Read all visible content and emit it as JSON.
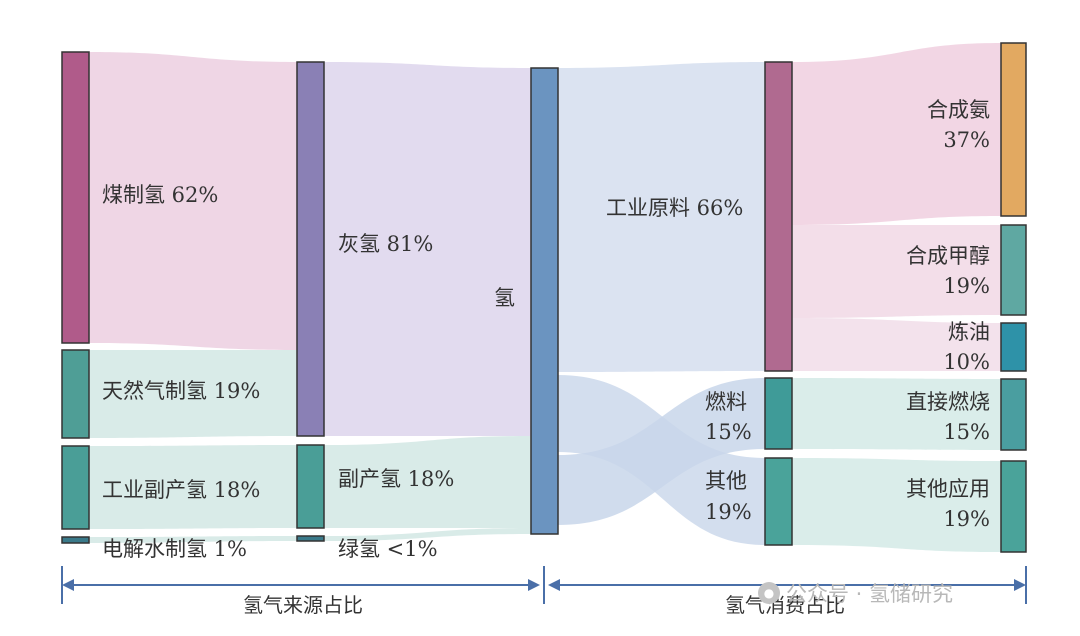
{
  "colors": {
    "coal": "#b05b8a",
    "gray": "#8a80b5",
    "gas": "#4f9e96",
    "byproduct": "#4a9e97",
    "electrolysis": "#3a7a8a",
    "green": "#3a7a8a",
    "hydrogen": "#6b94c0",
    "industry": "#b06a90",
    "fuel": "#3f9b98",
    "other": "#4aa39a",
    "ammonia": "#e2a961",
    "methanol": "#5fa8a2",
    "refining": "#2e92a8",
    "combustion": "#4a9ea0",
    "other_app": "#4aa39a",
    "axis": "#4a6fa8"
  },
  "nodes": {
    "coal_label": "煤制氢 62%",
    "gas_label": "天然气制氢 19%",
    "byproduct_src_label": "工业副产氢 18%",
    "electrolysis_label": "电解水制氢 1%",
    "gray_label": "灰氢 81%",
    "byproduct_label": "副产氢 18%",
    "green_label": "绿氢 <1%",
    "hydrogen_label": "氢",
    "industry_label": "工业原料 66%",
    "fuel_line1": "燃料",
    "fuel_line2": "15%",
    "other_line1": "其他",
    "other_line2": "19%",
    "ammonia_line1": "合成氨",
    "ammonia_line2": "37%",
    "methanol_line1": "合成甲醇",
    "methanol_line2": "19%",
    "refining_line1": "炼油",
    "refining_line2": "10%",
    "combustion_line1": "直接燃烧",
    "combustion_line2": "15%",
    "otherapp_line1": "其他应用",
    "otherapp_line2": "19%"
  },
  "sections": {
    "source": "氢气来源占比",
    "consumption": "氢气消费占比"
  },
  "watermark": {
    "text": "公众号 · 氢储研究"
  }
}
